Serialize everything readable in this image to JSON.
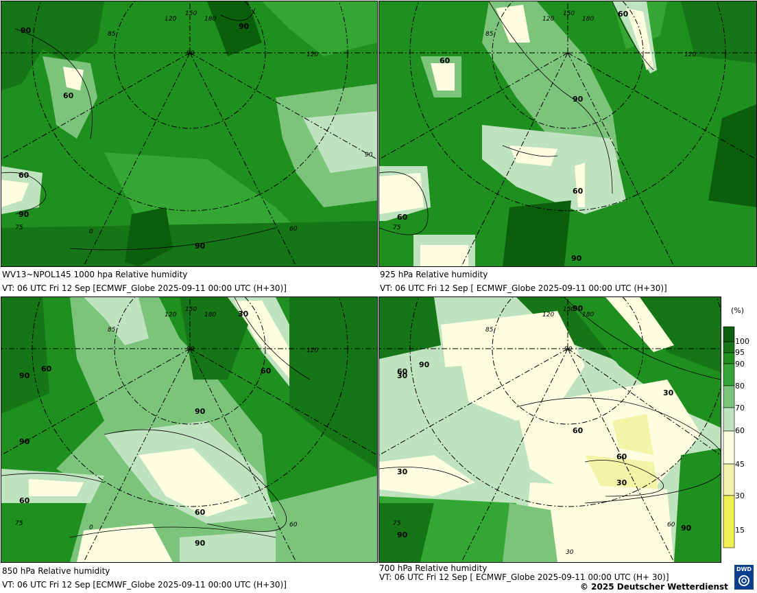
{
  "panels": [
    {
      "level": "WV13~NPOL145 1000 hpa Relative humidity",
      "valid": "VT: 06 UTC Fri  12 Sep [ECMWF_Globe 2025-09-11 00:00 UTC  (H+30)]",
      "contour_labels": [
        "90",
        "60",
        "60",
        "90",
        "90",
        "90"
      ],
      "meridian_labels": [
        "150",
        "120",
        "180",
        "85",
        "90",
        "120",
        "75",
        "0",
        "60",
        "90"
      ]
    },
    {
      "level": "925 hPa Relative humidity",
      "valid": "VT: 06 UTC Fri  12 Sep [ ECMWF_Globe 2025-09-11 00:00 UTC  (H+30)]",
      "contour_labels": [
        "60",
        "60",
        "90",
        "60",
        "60",
        "90"
      ],
      "meridian_labels": [
        "150",
        "120",
        "180",
        "85",
        "120",
        "75"
      ]
    },
    {
      "level": "850 hPa  Relative humidity",
      "valid": "VT: 06 UTC Fri  12 Sep [ECMWF_Globe 2025-09-11 00:00 UTC (H+30)]",
      "contour_labels": [
        "30",
        "60",
        "60",
        "90",
        "90",
        "90",
        "60",
        "90",
        "60"
      ],
      "meridian_labels": [
        "150",
        "120",
        "180",
        "85",
        "120",
        "90",
        "75",
        "0",
        "60"
      ]
    },
    {
      "level": "700 hPa Relative humidity",
      "valid": "VT: 06 UTC Fri  12 Sep [ ECMWF_Globe 2025-09-11 00:00 UTC  (H+ 30)]",
      "contour_labels": [
        "90",
        "60",
        "90",
        "30",
        "60",
        "30",
        "60",
        "30",
        "90",
        "30",
        "90"
      ],
      "meridian_labels": [
        "150",
        "120",
        "180",
        "85",
        "90",
        "75",
        "60",
        "30"
      ]
    }
  ],
  "legend": {
    "unit": "(%)",
    "levels": [
      "100",
      "95",
      "90",
      "80",
      "70",
      "60",
      "45",
      "30",
      "15"
    ],
    "colors": [
      "#0b5e0b",
      "#167516",
      "#1f8f1f",
      "#34a634",
      "#7cc47c",
      "#bfe3bf",
      "#fdfde0",
      "#f4f4a8",
      "#f0f050"
    ]
  },
  "copyright": "© 2025 Deutscher Wetterdienst",
  "logo_text": "DWD"
}
